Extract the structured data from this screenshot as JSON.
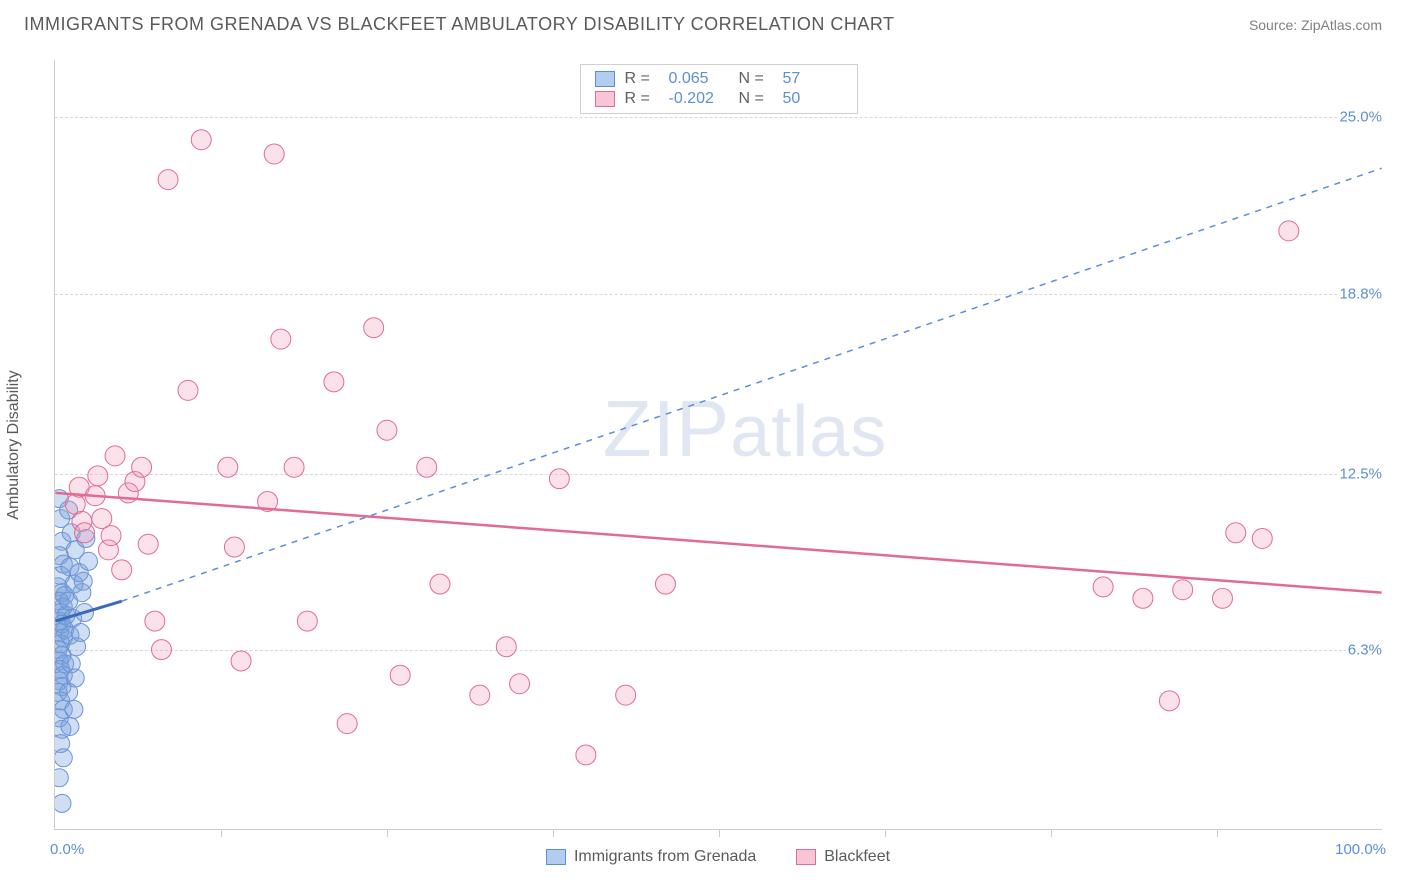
{
  "header": {
    "title": "IMMIGRANTS FROM GRENADA VS BLACKFEET AMBULATORY DISABILITY CORRELATION CHART",
    "source_prefix": "Source: ",
    "source_name": "ZipAtlas.com"
  },
  "chart": {
    "type": "scatter",
    "ylabel": "Ambulatory Disability",
    "xlim": [
      0,
      100
    ],
    "ylim": [
      0,
      27
    ],
    "yticks": [
      {
        "v": 6.3,
        "label": "6.3%"
      },
      {
        "v": 12.5,
        "label": "12.5%"
      },
      {
        "v": 18.8,
        "label": "18.8%"
      },
      {
        "v": 25.0,
        "label": "25.0%"
      }
    ],
    "xticks_minor": [
      12.5,
      25,
      37.5,
      50,
      62.5,
      75,
      87.5
    ],
    "x_start_label": "0.0%",
    "x_end_label": "100.0%",
    "background_color": "#ffffff",
    "grid_color": "#d8d8d8",
    "series": [
      {
        "name": "Immigrants from Grenada",
        "color_fill": "rgba(120,160,220,0.35)",
        "color_stroke": "#6a94d4",
        "swatch_fill": "#b3cdf0",
        "swatch_border": "#5b8fd6",
        "R": "0.065",
        "N": "57",
        "marker_radius": 9,
        "regression": {
          "x1": 0,
          "y1": 7.3,
          "x2": 5,
          "y2": 8.0,
          "solid": true,
          "width": 3
        },
        "extrapolation": {
          "x1": 5,
          "y1": 8.0,
          "x2": 100,
          "y2": 23.2,
          "dash": "6,6",
          "width": 1.5
        },
        "points": [
          [
            0.3,
            11.6
          ],
          [
            0.4,
            10.9
          ],
          [
            0.5,
            10.1
          ],
          [
            0.3,
            9.6
          ],
          [
            0.6,
            9.3
          ],
          [
            0.4,
            8.9
          ],
          [
            0.2,
            8.5
          ],
          [
            0.5,
            8.3
          ],
          [
            0.7,
            8.2
          ],
          [
            0.3,
            8.0
          ],
          [
            0.6,
            7.8
          ],
          [
            0.4,
            7.6
          ],
          [
            0.8,
            7.5
          ],
          [
            0.3,
            7.3
          ],
          [
            0.5,
            7.2
          ],
          [
            0.7,
            7.0
          ],
          [
            0.3,
            6.9
          ],
          [
            0.6,
            6.7
          ],
          [
            0.4,
            6.5
          ],
          [
            0.2,
            6.3
          ],
          [
            0.5,
            6.1
          ],
          [
            0.3,
            5.9
          ],
          [
            0.7,
            5.8
          ],
          [
            0.4,
            5.6
          ],
          [
            0.6,
            5.4
          ],
          [
            0.3,
            5.2
          ],
          [
            0.5,
            5.0
          ],
          [
            0.2,
            4.8
          ],
          [
            0.4,
            4.5
          ],
          [
            0.6,
            4.2
          ],
          [
            0.3,
            3.9
          ],
          [
            0.5,
            3.5
          ],
          [
            0.4,
            3.0
          ],
          [
            0.6,
            2.5
          ],
          [
            0.3,
            1.8
          ],
          [
            0.5,
            0.9
          ],
          [
            1.0,
            11.2
          ],
          [
            1.2,
            10.4
          ],
          [
            1.5,
            9.8
          ],
          [
            1.1,
            9.2
          ],
          [
            1.4,
            8.6
          ],
          [
            1.0,
            8.0
          ],
          [
            1.3,
            7.4
          ],
          [
            1.1,
            6.8
          ],
          [
            1.6,
            6.4
          ],
          [
            1.2,
            5.8
          ],
          [
            1.5,
            5.3
          ],
          [
            1.0,
            4.8
          ],
          [
            1.4,
            4.2
          ],
          [
            1.1,
            3.6
          ],
          [
            1.8,
            9.0
          ],
          [
            2.0,
            8.3
          ],
          [
            2.2,
            7.6
          ],
          [
            1.9,
            6.9
          ],
          [
            2.3,
            10.2
          ],
          [
            2.5,
            9.4
          ],
          [
            2.1,
            8.7
          ]
        ]
      },
      {
        "name": "Blackfeet",
        "color_fill": "rgba(240,150,180,0.28)",
        "color_stroke": "#e26b92",
        "swatch_fill": "#f6c6d6",
        "swatch_border": "#e26b92",
        "R": "-0.202",
        "N": "50",
        "marker_radius": 10,
        "regression": {
          "x1": 0,
          "y1": 11.8,
          "x2": 100,
          "y2": 8.3,
          "solid": true,
          "width": 2.5
        },
        "points": [
          [
            1.5,
            11.4
          ],
          [
            2.0,
            10.8
          ],
          [
            2.2,
            10.4
          ],
          [
            1.8,
            12.0
          ],
          [
            3.0,
            11.7
          ],
          [
            3.2,
            12.4
          ],
          [
            3.5,
            10.9
          ],
          [
            4.0,
            9.8
          ],
          [
            4.2,
            10.3
          ],
          [
            4.5,
            13.1
          ],
          [
            5.0,
            9.1
          ],
          [
            5.5,
            11.8
          ],
          [
            6.0,
            12.2
          ],
          [
            6.5,
            12.7
          ],
          [
            7.0,
            10.0
          ],
          [
            7.5,
            7.3
          ],
          [
            8.0,
            6.3
          ],
          [
            8.5,
            22.8
          ],
          [
            10.0,
            15.4
          ],
          [
            11.0,
            24.2
          ],
          [
            13.0,
            12.7
          ],
          [
            13.5,
            9.9
          ],
          [
            14.0,
            5.9
          ],
          [
            16.0,
            11.5
          ],
          [
            16.5,
            23.7
          ],
          [
            17.0,
            17.2
          ],
          [
            18.0,
            12.7
          ],
          [
            19.0,
            7.3
          ],
          [
            21.0,
            15.7
          ],
          [
            22.0,
            3.7
          ],
          [
            24.0,
            17.6
          ],
          [
            25.0,
            14.0
          ],
          [
            26.0,
            5.4
          ],
          [
            28.0,
            12.7
          ],
          [
            29.0,
            8.6
          ],
          [
            32.0,
            4.7
          ],
          [
            34.0,
            6.4
          ],
          [
            35.0,
            5.1
          ],
          [
            38.0,
            12.3
          ],
          [
            40.0,
            2.6
          ],
          [
            43.0,
            4.7
          ],
          [
            46.0,
            8.6
          ],
          [
            82.0,
            8.1
          ],
          [
            84.0,
            4.5
          ],
          [
            85.0,
            8.4
          ],
          [
            88.0,
            8.1
          ],
          [
            89.0,
            10.4
          ],
          [
            91.0,
            10.2
          ],
          [
            93.0,
            21.0
          ],
          [
            79.0,
            8.5
          ]
        ]
      }
    ],
    "legend_top_labels": {
      "R": "R =",
      "N": "N ="
    },
    "watermark": "ZIPatlas"
  }
}
